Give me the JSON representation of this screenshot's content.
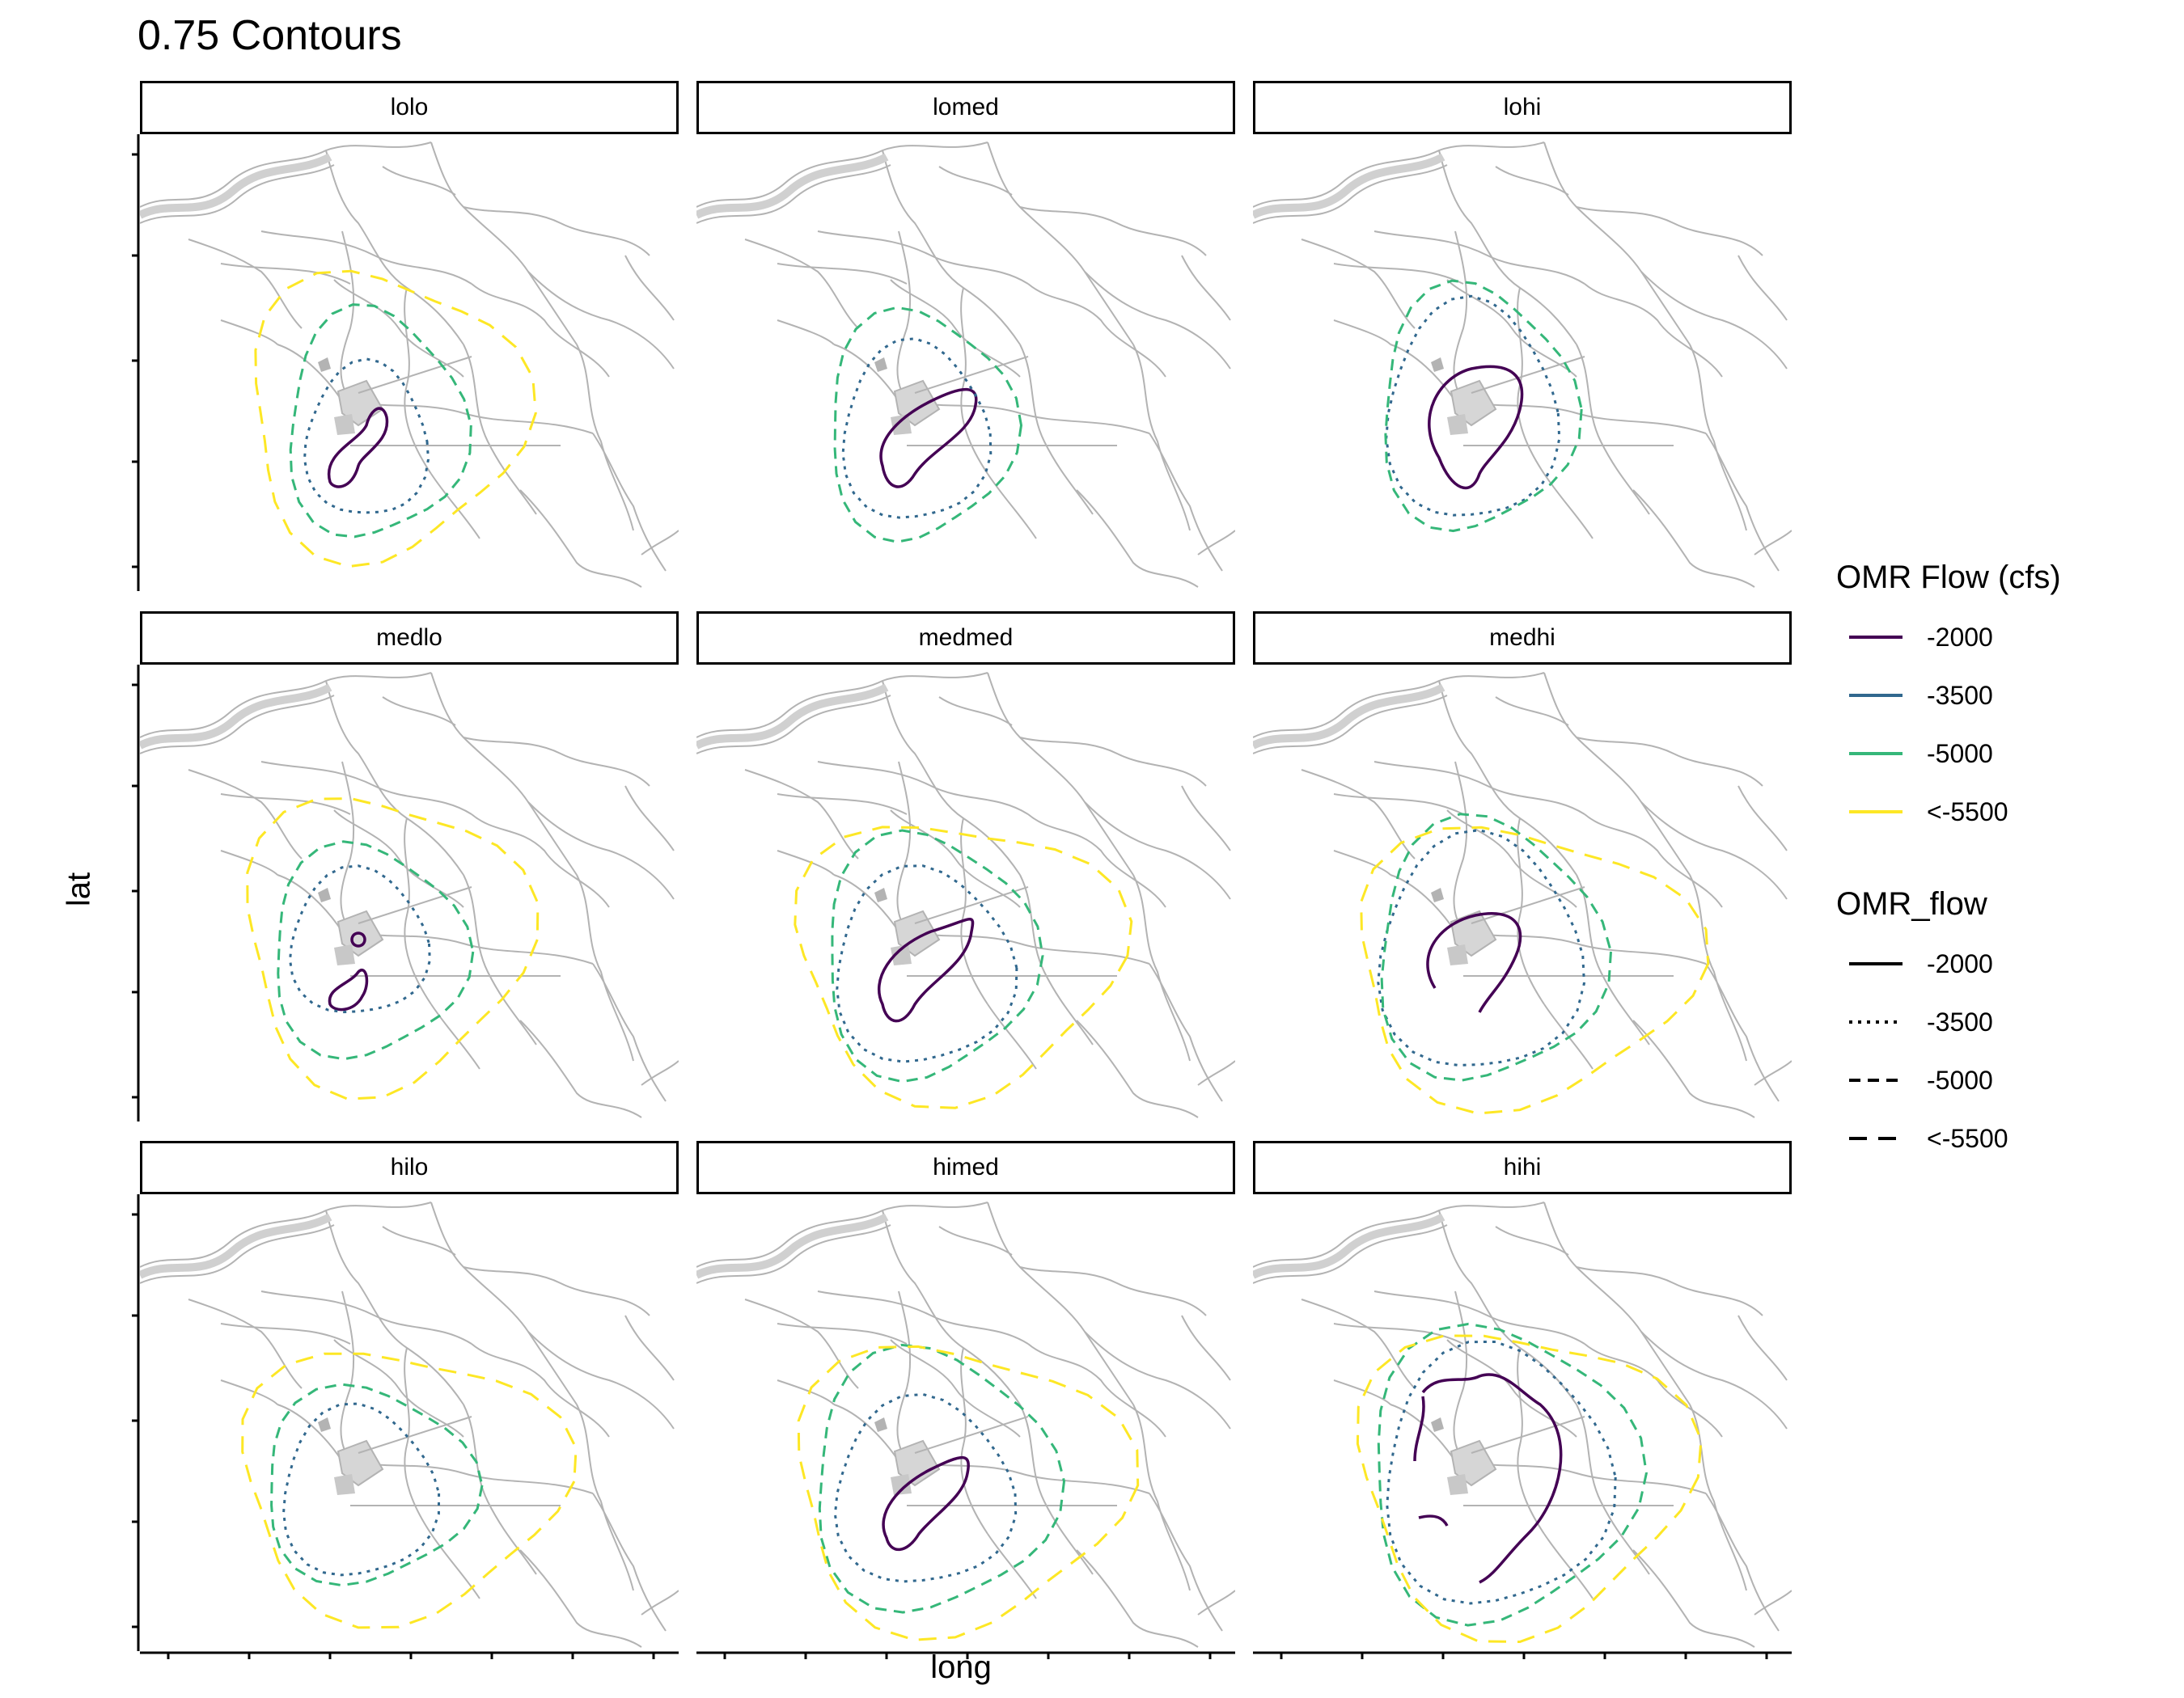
{
  "title": "0.75 Contours",
  "axes": {
    "x_label": "long",
    "y_label": "lat"
  },
  "panels": [
    {
      "label": "lolo"
    },
    {
      "label": "lomed"
    },
    {
      "label": "lohi"
    },
    {
      "label": "medlo"
    },
    {
      "label": "medmed"
    },
    {
      "label": "medhi"
    },
    {
      "label": "hilo"
    },
    {
      "label": "himed"
    },
    {
      "label": "hihi"
    }
  ],
  "legend_color": {
    "title": "OMR Flow (cfs)",
    "items": [
      {
        "label": "-2000",
        "color": "#440154"
      },
      {
        "label": "-3500",
        "color": "#31688e"
      },
      {
        "label": "-5000",
        "color": "#35b779"
      },
      {
        "label": "<-5500",
        "color": "#fde725"
      }
    ]
  },
  "legend_linetype": {
    "title": "OMR_flow",
    "items": [
      {
        "label": "-2000",
        "linetype": "solid"
      },
      {
        "label": "-3500",
        "linetype": "dotted"
      },
      {
        "label": "-5000",
        "linetype": "dashed"
      },
      {
        "label": "<-5500",
        "linetype": "longdash"
      }
    ]
  },
  "map_color": "#b3b3b3"
}
